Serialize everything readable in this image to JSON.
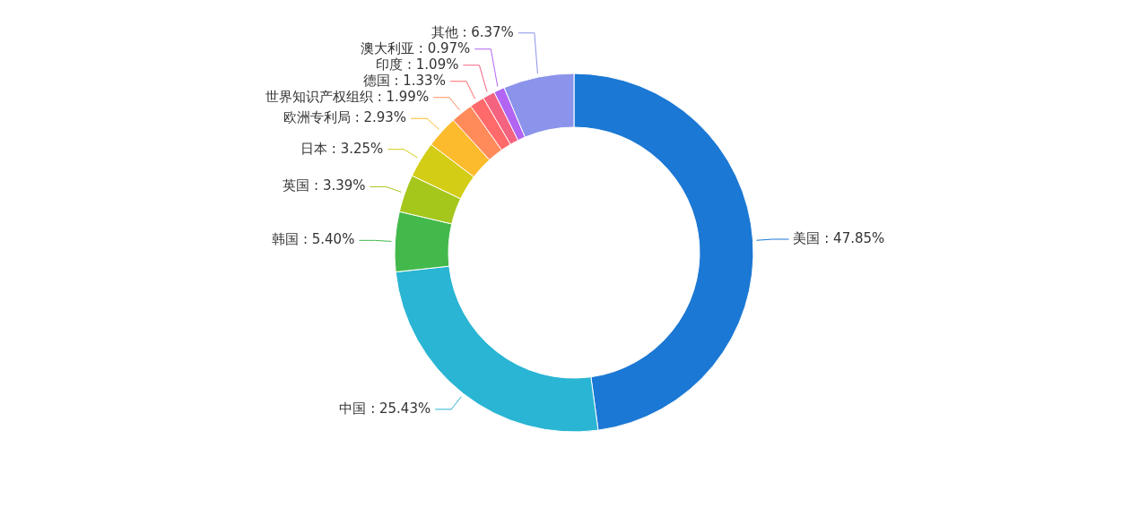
{
  "chart_data": {
    "type": "donut",
    "categories": [
      "美国",
      "中国",
      "韩国",
      "英国",
      "日本",
      "欧洲专利局",
      "世界知识产权组织",
      "德国",
      "印度",
      "澳大利亚",
      "其他"
    ],
    "values": [
      47.85,
      25.43,
      5.4,
      3.39,
      3.25,
      2.93,
      1.99,
      1.33,
      1.09,
      0.97,
      6.37
    ],
    "value_labels": [
      "47.85%",
      "25.43%",
      "5.40%",
      "3.39%",
      "3.25%",
      "2.93%",
      "1.99%",
      "1.33%",
      "1.09%",
      "0.97%",
      "6.37%"
    ],
    "colors": [
      "#1b78d4",
      "#29b5d3",
      "#44b94b",
      "#a5c71c",
      "#d3cd16",
      "#fcbb2c",
      "#ff8b5b",
      "#ff6a6a",
      "#f4637f",
      "#b264f2",
      "#8b94ea"
    ],
    "legend": false
  }
}
